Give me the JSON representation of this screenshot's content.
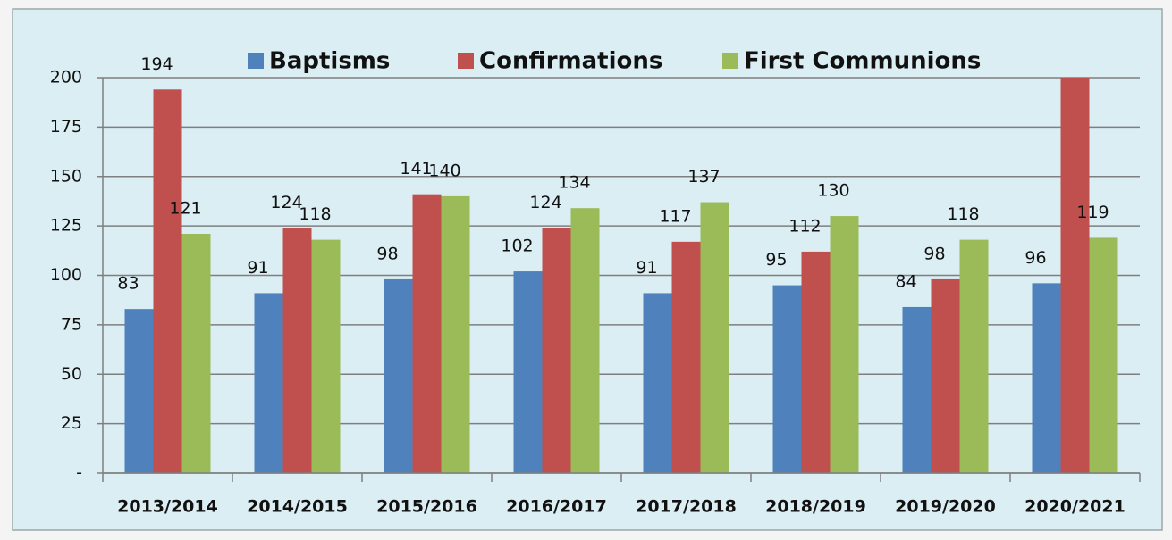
{
  "chart_data": {
    "type": "bar",
    "categories": [
      "2013/2014",
      "2014/2015",
      "2015/2016",
      "2016/2017",
      "2017/2018",
      "2018/2019",
      "2019/2020",
      "2020/2021"
    ],
    "series": [
      {
        "name": "Baptisms",
        "color": "#4f81bd",
        "values": [
          83,
          91,
          98,
          102,
          91,
          95,
          84,
          96
        ]
      },
      {
        "name": "Confirmations",
        "color": "#c0504d",
        "values": [
          194,
          124,
          141,
          124,
          117,
          112,
          98,
          200
        ]
      },
      {
        "name": "First Communions",
        "color": "#9bbb59",
        "values": [
          121,
          118,
          140,
          134,
          137,
          130,
          118,
          119
        ]
      }
    ],
    "ylim": [
      0,
      200
    ],
    "yticks": [
      {
        "value": 0,
        "label": "-"
      },
      25,
      50,
      75,
      100,
      125,
      150,
      175,
      200
    ],
    "grid": true,
    "legend": "top"
  }
}
